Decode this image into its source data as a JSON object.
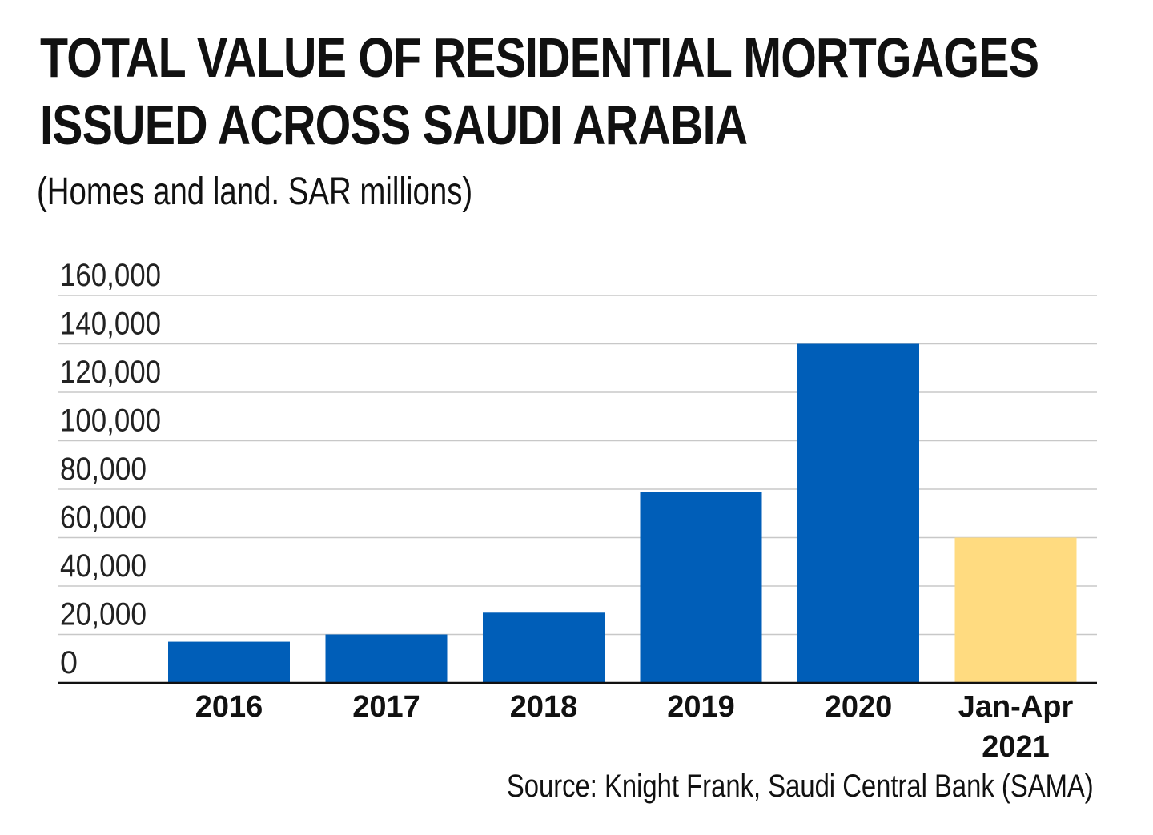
{
  "chart_data": {
    "type": "bar",
    "title": [
      "TOTAL VALUE OF RESIDENTIAL MORTGAGES",
      "ISSUED ACROSS SAUDI ARABIA"
    ],
    "subtitle": "(Homes and land. SAR millions)",
    "categories": [
      [
        "2016"
      ],
      [
        "2017"
      ],
      [
        "2018"
      ],
      [
        "2019"
      ],
      [
        "2020"
      ],
      [
        "Jan-Apr",
        "2021"
      ]
    ],
    "values": [
      17000,
      20000,
      29000,
      79000,
      140000,
      60000
    ],
    "colors": [
      "#005EB8",
      "#005EB8",
      "#005EB8",
      "#005EB8",
      "#005EB8",
      "#FFDB80"
    ],
    "ylim": [
      0,
      160000
    ],
    "yticks": [
      "0",
      "20,000",
      "40,000",
      "60,000",
      "80,000",
      "100,000",
      "120,000",
      "140,000",
      "160,000"
    ],
    "xlabel": "",
    "ylabel": "",
    "grid": true,
    "source": "Source: Knight Frank, Saudi Central Bank (SAMA)"
  }
}
